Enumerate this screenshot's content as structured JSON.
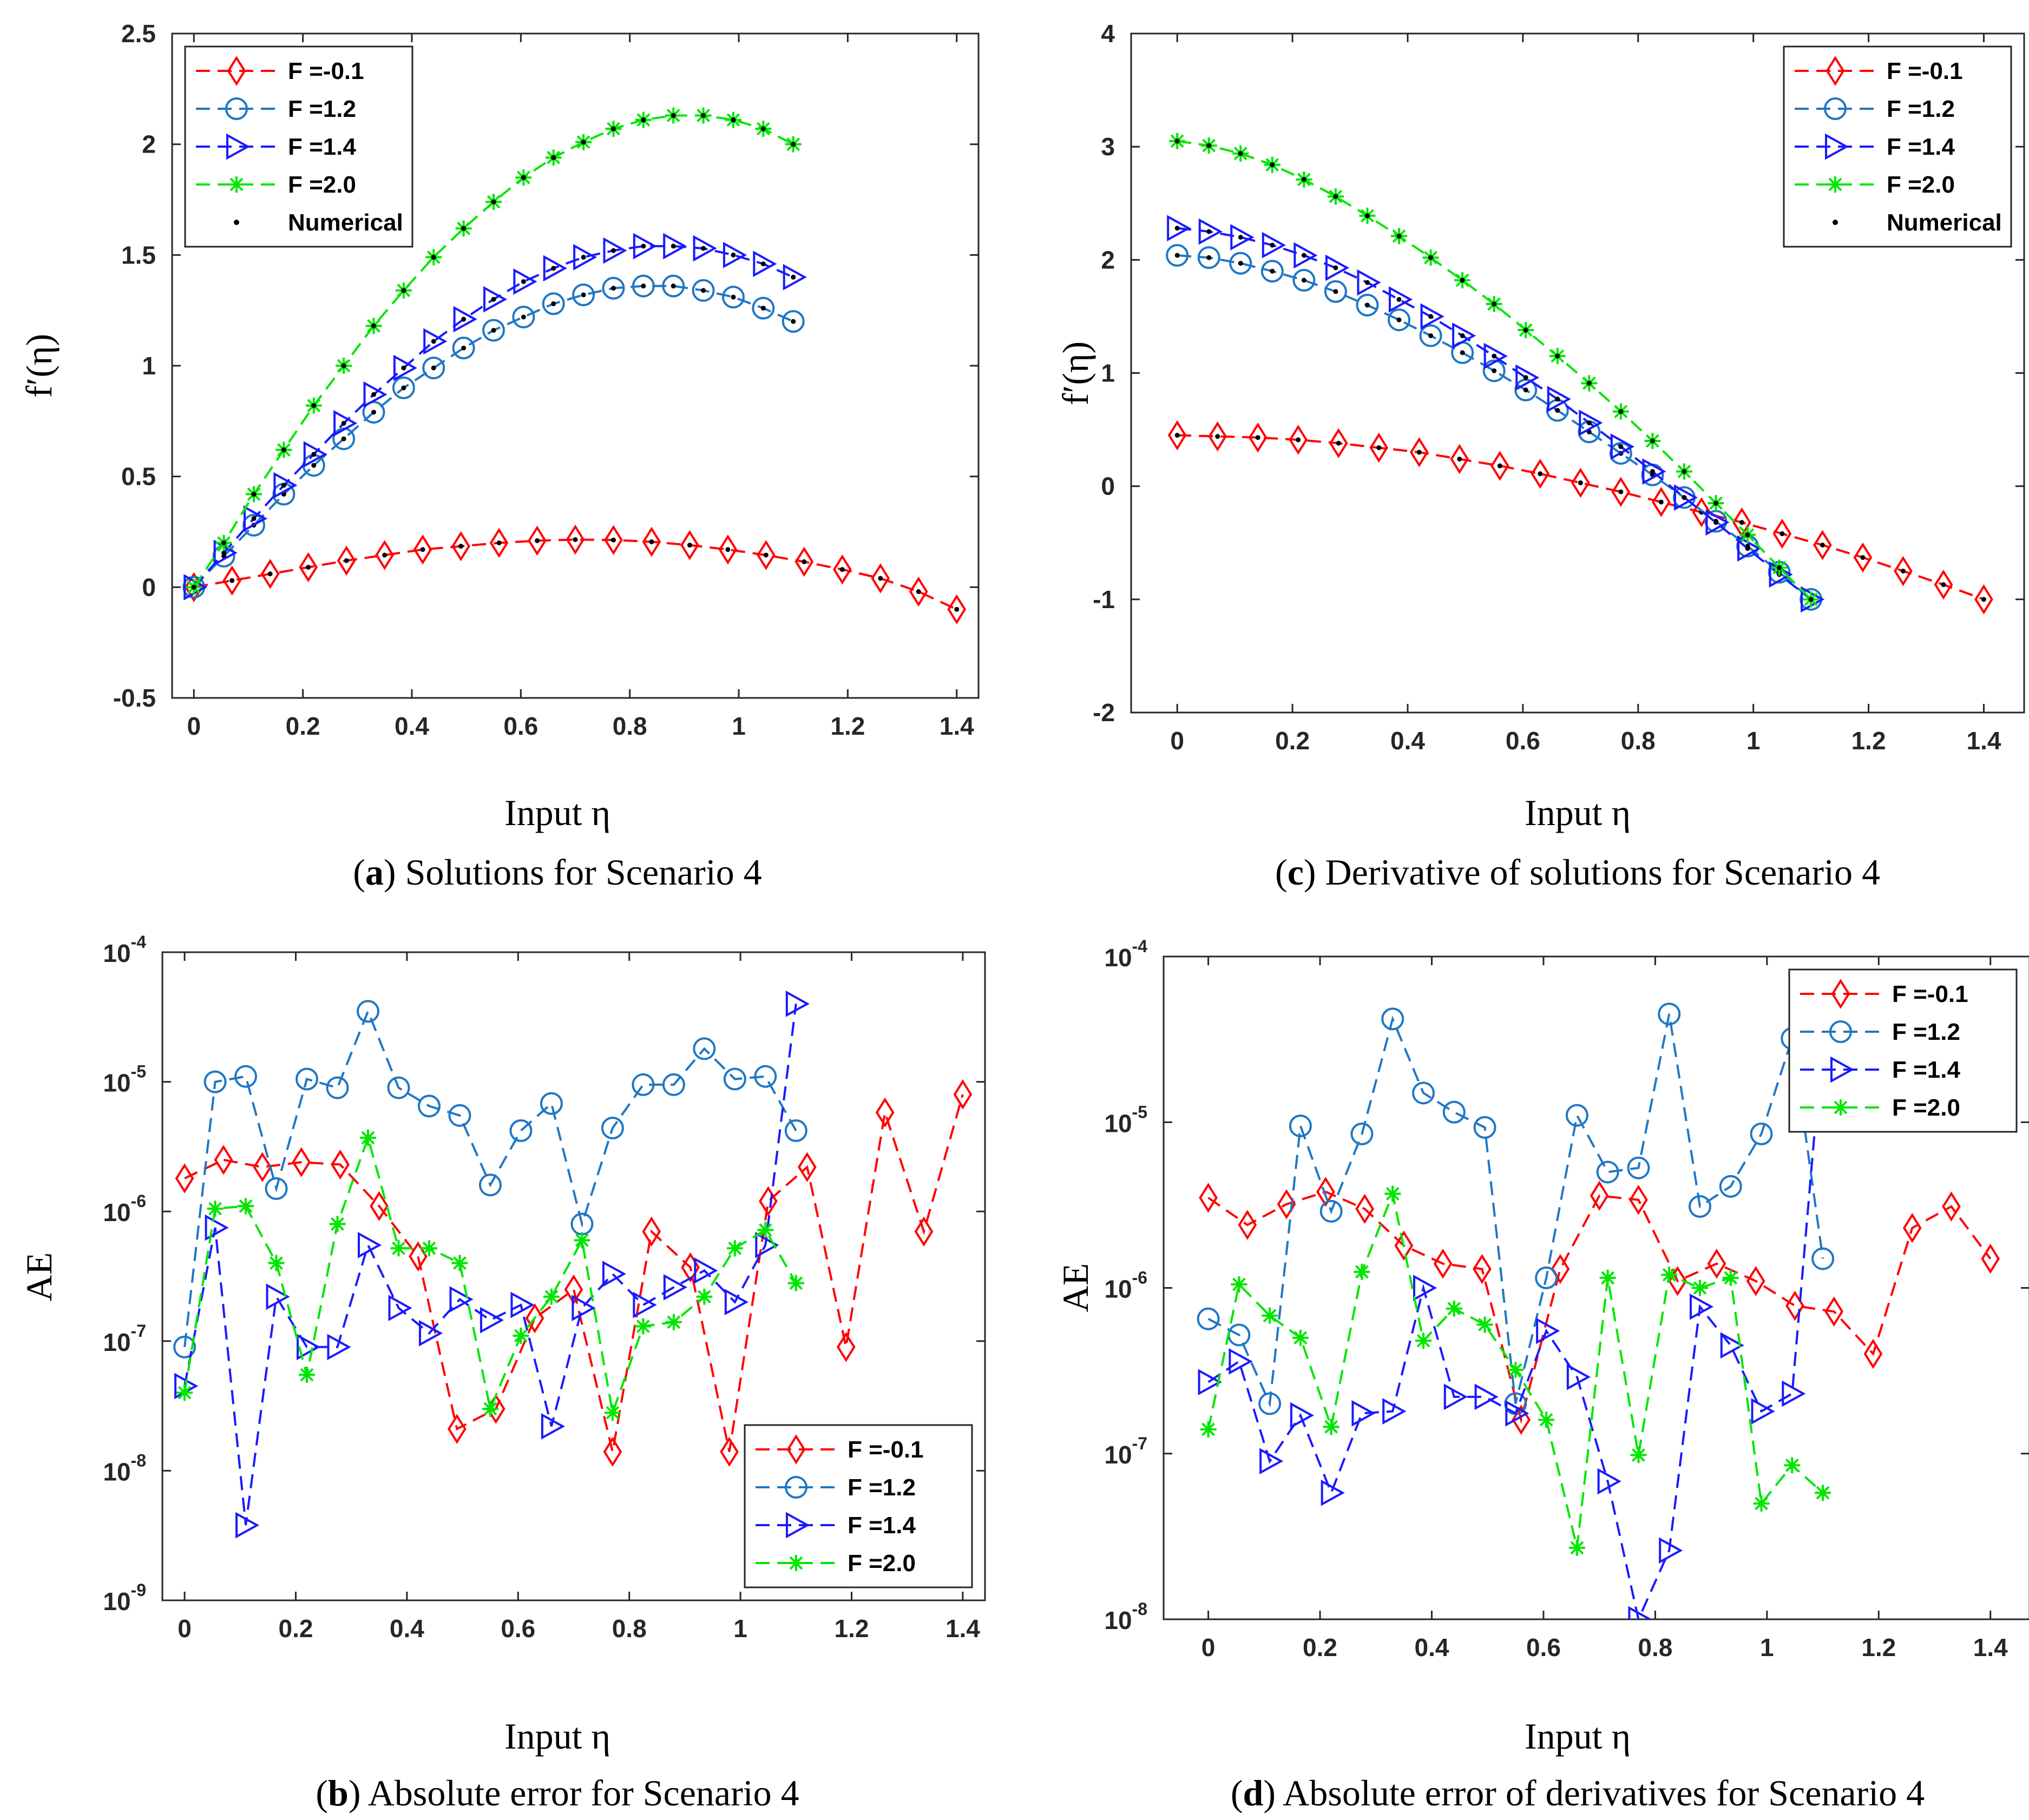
{
  "colors": {
    "red": "#ff0000",
    "lightblue": "#1f77c4",
    "blue": "#1a1aff",
    "green": "#00e600",
    "numerical": "#000000"
  },
  "chart_data": [
    {
      "id": "a",
      "type": "line",
      "ylabel": "f′(η)",
      "xlabel": "Input η",
      "caption_letter": "a",
      "caption_text": " Solutions for Scenario 4",
      "legend_position": "top-left",
      "show_numerical": true,
      "xlim": [
        -0.04,
        1.44
      ],
      "ylim": [
        -0.5,
        2.5
      ],
      "yscale": "linear",
      "xticks": [
        "0",
        "0.2",
        "0.4",
        "0.6",
        "0.8",
        "1",
        "1.2",
        "1.4"
      ],
      "xtick_values": [
        0,
        0.2,
        0.4,
        0.6,
        0.8,
        1,
        1.2,
        1.4
      ],
      "yticks": [
        "-0.5",
        "0",
        "0.5",
        "1",
        "1.5",
        "2",
        "2.5"
      ],
      "ytick_values": [
        -0.5,
        0,
        0.5,
        1,
        1.5,
        2,
        2.5
      ],
      "series": [
        {
          "name": "F =-0.1",
          "label": "F =-0.1",
          "color": "red",
          "marker": "diamond",
          "x": [
            0,
            0.07,
            0.14,
            0.21,
            0.28,
            0.35,
            0.42,
            0.49,
            0.56,
            0.63,
            0.7,
            0.77,
            0.84,
            0.91,
            0.98,
            1.05,
            1.12,
            1.19,
            1.26,
            1.33,
            1.4
          ],
          "y": [
            0,
            0.03,
            0.06,
            0.09,
            0.12,
            0.145,
            0.17,
            0.185,
            0.2,
            0.21,
            0.215,
            0.213,
            0.205,
            0.19,
            0.17,
            0.145,
            0.115,
            0.08,
            0.04,
            -0.02,
            -0.1
          ]
        },
        {
          "name": "F =1.2",
          "label": "F =1.2",
          "color": "lightblue",
          "marker": "circle",
          "x": [
            0,
            0.055,
            0.11,
            0.165,
            0.22,
            0.275,
            0.33,
            0.385,
            0.44,
            0.495,
            0.55,
            0.605,
            0.66,
            0.715,
            0.77,
            0.825,
            0.88,
            0.935,
            0.99,
            1.045,
            1.1
          ],
          "y": [
            0,
            0.14,
            0.28,
            0.42,
            0.55,
            0.67,
            0.79,
            0.9,
            0.99,
            1.08,
            1.16,
            1.22,
            1.28,
            1.32,
            1.35,
            1.36,
            1.36,
            1.34,
            1.31,
            1.26,
            1.2
          ]
        },
        {
          "name": "F =1.4",
          "label": "F =1.4",
          "color": "blue",
          "marker": "triangle-right",
          "x": [
            0,
            0.055,
            0.11,
            0.165,
            0.22,
            0.275,
            0.33,
            0.385,
            0.44,
            0.495,
            0.55,
            0.605,
            0.66,
            0.715,
            0.77,
            0.825,
            0.88,
            0.935,
            0.99,
            1.045,
            1.1
          ],
          "y": [
            0,
            0.155,
            0.31,
            0.46,
            0.6,
            0.74,
            0.87,
            0.99,
            1.11,
            1.21,
            1.3,
            1.38,
            1.44,
            1.49,
            1.52,
            1.54,
            1.54,
            1.53,
            1.5,
            1.46,
            1.4
          ]
        },
        {
          "name": "F =2.0",
          "label": "F =2.0",
          "color": "green",
          "marker": "star",
          "x": [
            0,
            0.055,
            0.11,
            0.165,
            0.22,
            0.275,
            0.33,
            0.385,
            0.44,
            0.495,
            0.55,
            0.605,
            0.66,
            0.715,
            0.77,
            0.825,
            0.88,
            0.935,
            0.99,
            1.045,
            1.1
          ],
          "y": [
            0,
            0.2,
            0.42,
            0.62,
            0.82,
            1.0,
            1.18,
            1.34,
            1.49,
            1.62,
            1.74,
            1.85,
            1.94,
            2.01,
            2.07,
            2.11,
            2.13,
            2.13,
            2.11,
            2.07,
            2.0
          ]
        }
      ]
    },
    {
      "id": "c",
      "type": "line",
      "ylabel": "f′(η)",
      "xlabel": "Input η",
      "caption_letter": "c",
      "caption_text": " Derivative of solutions for Scenario 4",
      "legend_position": "top-right",
      "show_numerical": true,
      "xlim": [
        -0.08,
        1.47
      ],
      "ylim": [
        -2,
        4
      ],
      "yscale": "linear",
      "xticks": [
        "0",
        "0.2",
        "0.4",
        "0.6",
        "0.8",
        "1",
        "1.2",
        "1.4"
      ],
      "xtick_values": [
        0,
        0.2,
        0.4,
        0.6,
        0.8,
        1,
        1.2,
        1.4
      ],
      "yticks": [
        "-2",
        "-1",
        "0",
        "1",
        "2",
        "3",
        "4"
      ],
      "ytick_values": [
        -2,
        -1,
        0,
        1,
        2,
        3,
        4
      ],
      "series": [
        {
          "name": "F =-0.1",
          "label": "F =-0.1",
          "color": "red",
          "marker": "diamond",
          "x": [
            0,
            0.07,
            0.14,
            0.21,
            0.28,
            0.35,
            0.42,
            0.49,
            0.56,
            0.63,
            0.7,
            0.77,
            0.84,
            0.91,
            0.98,
            1.05,
            1.12,
            1.19,
            1.26,
            1.33,
            1.4
          ],
          "y": [
            0.45,
            0.44,
            0.43,
            0.41,
            0.38,
            0.34,
            0.3,
            0.24,
            0.18,
            0.11,
            0.03,
            -0.05,
            -0.14,
            -0.23,
            -0.32,
            -0.42,
            -0.52,
            -0.63,
            -0.75,
            -0.87,
            -1.0
          ]
        },
        {
          "name": "F =1.2",
          "label": "F =1.2",
          "color": "lightblue",
          "marker": "circle",
          "x": [
            0,
            0.055,
            0.11,
            0.165,
            0.22,
            0.275,
            0.33,
            0.385,
            0.44,
            0.495,
            0.55,
            0.605,
            0.66,
            0.715,
            0.77,
            0.825,
            0.88,
            0.935,
            0.99,
            1.045,
            1.1
          ],
          "y": [
            2.04,
            2.02,
            1.97,
            1.9,
            1.82,
            1.72,
            1.6,
            1.47,
            1.33,
            1.18,
            1.02,
            0.85,
            0.67,
            0.48,
            0.29,
            0.1,
            -0.1,
            -0.31,
            -0.53,
            -0.76,
            -1.0
          ]
        },
        {
          "name": "F =1.4",
          "label": "F =1.4",
          "color": "blue",
          "marker": "triangle-right",
          "x": [
            0,
            0.055,
            0.11,
            0.165,
            0.22,
            0.275,
            0.33,
            0.385,
            0.44,
            0.495,
            0.55,
            0.605,
            0.66,
            0.715,
            0.77,
            0.825,
            0.88,
            0.935,
            0.99,
            1.045,
            1.1
          ],
          "y": [
            2.28,
            2.25,
            2.2,
            2.13,
            2.04,
            1.93,
            1.8,
            1.65,
            1.5,
            1.33,
            1.15,
            0.96,
            0.77,
            0.56,
            0.35,
            0.13,
            -0.1,
            -0.32,
            -0.55,
            -0.78,
            -1.0
          ]
        },
        {
          "name": "F =2.0",
          "label": "F =2.0",
          "color": "green",
          "marker": "star",
          "x": [
            0,
            0.055,
            0.11,
            0.165,
            0.22,
            0.275,
            0.33,
            0.385,
            0.44,
            0.495,
            0.55,
            0.605,
            0.66,
            0.715,
            0.77,
            0.825,
            0.88,
            0.935,
            0.99,
            1.045,
            1.1
          ],
          "y": [
            3.05,
            3.01,
            2.94,
            2.84,
            2.71,
            2.56,
            2.39,
            2.21,
            2.02,
            1.82,
            1.61,
            1.38,
            1.15,
            0.91,
            0.66,
            0.4,
            0.13,
            -0.15,
            -0.43,
            -0.72,
            -1.0
          ]
        }
      ]
    },
    {
      "id": "b",
      "type": "line",
      "ylabel": "AE",
      "xlabel": "Input η",
      "caption_letter": "b",
      "caption_text": " Absolute error for Scenario 4",
      "legend_position": "bottom-right",
      "show_numerical": false,
      "xlim": [
        -0.04,
        1.44
      ],
      "ylim": [
        -9,
        -4
      ],
      "yscale": "log",
      "xticks": [
        "0",
        "0.2",
        "0.4",
        "0.6",
        "0.8",
        "1",
        "1.2",
        "1.4"
      ],
      "xtick_values": [
        0,
        0.2,
        0.4,
        0.6,
        0.8,
        1,
        1.2,
        1.4
      ],
      "yticks": [
        "-9",
        "-8",
        "-7",
        "-6",
        "-5",
        "-4"
      ],
      "ytick_values": [
        -9,
        -8,
        -7,
        -6,
        -5,
        -4
      ],
      "series": [
        {
          "name": "F =-0.1",
          "label": "F =-0.1",
          "color": "red",
          "marker": "diamond",
          "x": [
            0,
            0.07,
            0.14,
            0.21,
            0.28,
            0.35,
            0.42,
            0.49,
            0.56,
            0.63,
            0.7,
            0.77,
            0.84,
            0.91,
            0.98,
            1.05,
            1.12,
            1.19,
            1.26,
            1.33,
            1.4
          ],
          "y": [
            1.8e-06,
            2.5e-06,
            2.2e-06,
            2.4e-06,
            2.3e-06,
            1.1e-06,
            4.5e-07,
            2.1e-08,
            3e-08,
            1.5e-07,
            2.5e-07,
            1.4e-08,
            7e-07,
            3.7e-07,
            1.4e-08,
            1.2e-06,
            2.2e-06,
            9e-08,
            5.8e-06,
            7e-07,
            8e-06
          ]
        },
        {
          "name": "F =1.2",
          "label": "F =1.2",
          "color": "lightblue",
          "marker": "circle",
          "x": [
            0,
            0.055,
            0.11,
            0.165,
            0.22,
            0.275,
            0.33,
            0.385,
            0.44,
            0.495,
            0.55,
            0.605,
            0.66,
            0.715,
            0.77,
            0.825,
            0.88,
            0.935,
            0.99,
            1.045,
            1.1
          ],
          "y": [
            9e-08,
            1e-05,
            1.1e-05,
            1.5e-06,
            1.05e-05,
            9e-06,
            3.5e-05,
            9e-06,
            6.5e-06,
            5.5e-06,
            1.6e-06,
            4.2e-06,
            6.8e-06,
            8e-07,
            4.4e-06,
            9.5e-06,
            9.5e-06,
            1.8e-05,
            1.05e-05,
            1.1e-05,
            4.2e-06
          ]
        },
        {
          "name": "F =1.4",
          "label": "F =1.4",
          "color": "blue",
          "marker": "triangle-right",
          "x": [
            0,
            0.055,
            0.11,
            0.165,
            0.22,
            0.275,
            0.33,
            0.385,
            0.44,
            0.495,
            0.55,
            0.605,
            0.66,
            0.715,
            0.77,
            0.825,
            0.88,
            0.935,
            0.99,
            1.045,
            1.1
          ],
          "y": [
            4.5e-08,
            7.5e-07,
            3.8e-09,
            2.2e-07,
            9e-08,
            9e-08,
            5.5e-07,
            1.8e-07,
            1.15e-07,
            2.1e-07,
            1.45e-07,
            1.9e-07,
            2.2e-08,
            1.8e-07,
            3.3e-07,
            1.9e-07,
            2.6e-07,
            3.5e-07,
            2e-07,
            5.5e-07,
            4e-05
          ]
        },
        {
          "name": "F =2.0",
          "label": "F =2.0",
          "color": "green",
          "marker": "star",
          "x": [
            0,
            0.055,
            0.11,
            0.165,
            0.22,
            0.275,
            0.33,
            0.385,
            0.44,
            0.495,
            0.55,
            0.605,
            0.66,
            0.715,
            0.77,
            0.825,
            0.88,
            0.935,
            0.99,
            1.045,
            1.1
          ],
          "y": [
            4e-08,
            1.05e-06,
            1.1e-06,
            4e-07,
            5.5e-08,
            8e-07,
            3.7e-06,
            5.2e-07,
            5.2e-07,
            4e-07,
            3e-08,
            1.1e-07,
            2.2e-07,
            6e-07,
            2.8e-08,
            1.3e-07,
            1.4e-07,
            2.2e-07,
            5.2e-07,
            7.2e-07,
            2.8e-07
          ]
        }
      ]
    },
    {
      "id": "d",
      "type": "line",
      "ylabel": "AE",
      "xlabel": "Input η",
      "caption_letter": "d",
      "caption_text": " Absolute error of derivatives for Scenario 4",
      "legend_position": "top-right",
      "show_numerical": false,
      "xlim": [
        -0.08,
        1.47
      ],
      "ylim": [
        -8,
        -4
      ],
      "yscale": "log",
      "xticks": [
        "0",
        "0.2",
        "0.4",
        "0.6",
        "0.8",
        "1",
        "1.2",
        "1.4"
      ],
      "xtick_values": [
        0,
        0.2,
        0.4,
        0.6,
        0.8,
        1,
        1.2,
        1.4
      ],
      "yticks": [
        "-8",
        "-7",
        "-6",
        "-5",
        "-4"
      ],
      "ytick_values": [
        -8,
        -7,
        -6,
        -5,
        -4
      ],
      "series": [
        {
          "name": "F =-0.1",
          "label": "F =-0.1",
          "color": "red",
          "marker": "diamond",
          "x": [
            0,
            0.07,
            0.14,
            0.21,
            0.28,
            0.35,
            0.42,
            0.49,
            0.56,
            0.63,
            0.7,
            0.77,
            0.84,
            0.91,
            0.98,
            1.05,
            1.12,
            1.19,
            1.26,
            1.33,
            1.4
          ],
          "y": [
            3.5e-06,
            2.4e-06,
            3.2e-06,
            3.8e-06,
            3e-06,
            1.8e-06,
            1.4e-06,
            1.3e-06,
            1.6e-07,
            1.3e-06,
            3.6e-06,
            3.4e-06,
            1.1e-06,
            1.4e-06,
            1.1e-06,
            7.8e-07,
            7.2e-07,
            4e-07,
            2.3e-06,
            3.1e-06,
            1.5e-06
          ]
        },
        {
          "name": "F =1.2",
          "label": "F =1.2",
          "color": "lightblue",
          "marker": "circle",
          "x": [
            0,
            0.055,
            0.11,
            0.165,
            0.22,
            0.275,
            0.33,
            0.385,
            0.44,
            0.495,
            0.55,
            0.605,
            0.66,
            0.715,
            0.77,
            0.825,
            0.88,
            0.935,
            0.99,
            1.045,
            1.1
          ],
          "y": [
            6.5e-07,
            5.2e-07,
            2e-07,
            9.5e-06,
            2.9e-06,
            8.5e-06,
            4.2e-05,
            1.5e-05,
            1.15e-05,
            9.3e-06,
            2e-07,
            1.15e-06,
            1.1e-05,
            5e-06,
            5.3e-06,
            4.5e-05,
            3.1e-06,
            4.1e-06,
            8.5e-06,
            3.2e-05,
            1.5e-06
          ]
        },
        {
          "name": "F =1.4",
          "label": "F =1.4",
          "color": "blue",
          "marker": "triangle-right",
          "x": [
            0,
            0.055,
            0.11,
            0.165,
            0.22,
            0.275,
            0.33,
            0.385,
            0.44,
            0.495,
            0.55,
            0.605,
            0.66,
            0.715,
            0.77,
            0.825,
            0.88,
            0.935,
            0.99,
            1.045,
            1.1
          ],
          "y": [
            2.7e-07,
            3.6e-07,
            9e-08,
            1.7e-07,
            5.8e-08,
            1.75e-07,
            1.8e-07,
            1e-06,
            2.2e-07,
            2.2e-07,
            1.75e-07,
            5.5e-07,
            2.9e-07,
            6.8e-08,
            1e-08,
            2.6e-08,
            7.7e-07,
            4.5e-07,
            1.8e-07,
            2.3e-07,
            3.3e-05
          ]
        },
        {
          "name": "F =2.0",
          "label": "F =2.0",
          "color": "green",
          "marker": "star",
          "x": [
            0,
            0.055,
            0.11,
            0.165,
            0.22,
            0.275,
            0.33,
            0.385,
            0.44,
            0.495,
            0.55,
            0.605,
            0.66,
            0.715,
            0.77,
            0.825,
            0.88,
            0.935,
            0.99,
            1.045,
            1.1
          ],
          "y": [
            1.4e-07,
            1.05e-06,
            6.8e-07,
            5e-07,
            1.45e-07,
            1.25e-06,
            3.7e-06,
            4.8e-07,
            7.5e-07,
            6e-07,
            3.2e-07,
            1.6e-07,
            2.7e-08,
            1.15e-06,
            9.8e-08,
            1.2e-06,
            1e-06,
            1.15e-06,
            5e-08,
            8.5e-08,
            5.8e-08
          ]
        }
      ]
    }
  ],
  "legend_numerical_label": "Numerical"
}
